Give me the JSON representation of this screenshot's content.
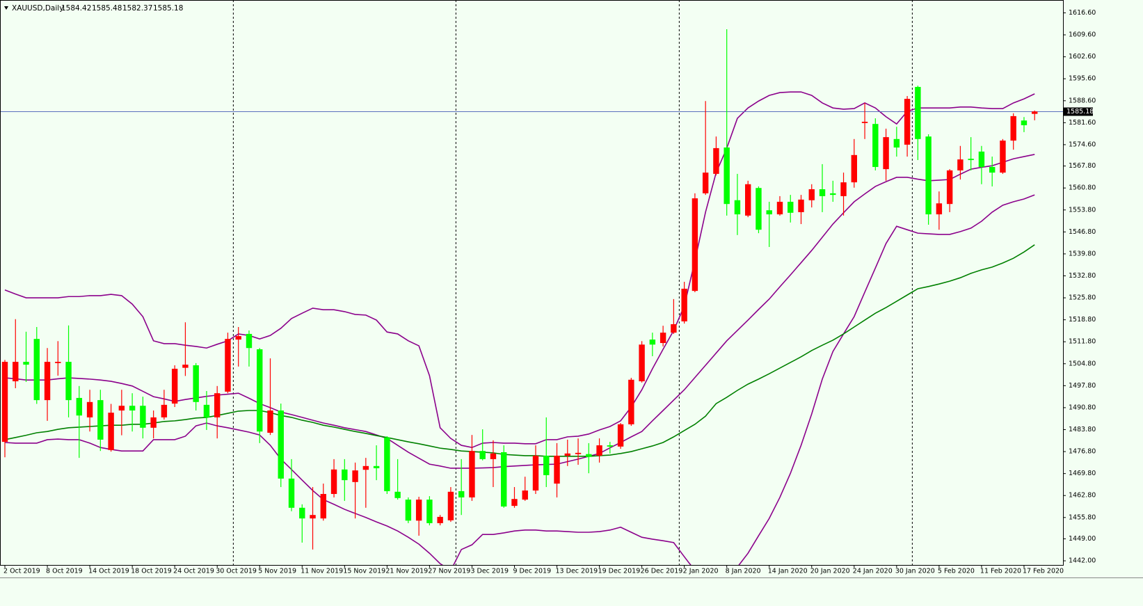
{
  "chart_data": {
    "type": "candlestick",
    "title": "XAUUSD,Daily",
    "categories": [
      "2 Oct 2019",
      null,
      null,
      null,
      "8 Oct 2019",
      null,
      null,
      null,
      "14 Oct 2019",
      null,
      null,
      null,
      "18 Oct 2019",
      null,
      null,
      null,
      "24 Oct 2019",
      null,
      null,
      null,
      "30 Oct 2019",
      null,
      null,
      null,
      "5 Nov 2019",
      null,
      null,
      null,
      "11 Nov 2019",
      null,
      null,
      null,
      "15 Nov 2019",
      null,
      null,
      null,
      "21 Nov 2019",
      null,
      null,
      null,
      "27 Nov 2019",
      null,
      null,
      null,
      "3 Dec 2019",
      null,
      null,
      null,
      "9 Dec 2019",
      null,
      null,
      null,
      "13 Dec 2019",
      null,
      null,
      null,
      "19 Dec 2019",
      null,
      null,
      null,
      "26 Dec 2019",
      null,
      null,
      null,
      "2 Jan 2020",
      null,
      null,
      null,
      "8 Jan 2020",
      null,
      null,
      null,
      "14 Jan 2020",
      null,
      null,
      null,
      "20 Jan 2020",
      null,
      null,
      null,
      "24 Jan 2020",
      null,
      null,
      null,
      "30 Jan 2020",
      null,
      null,
      null,
      "5 Feb 2020",
      null,
      null,
      null,
      "11 Feb 2020",
      null,
      null,
      null,
      "17 Feb 2020",
      null
    ],
    "open": [
      1479.9,
      1499.2,
      1505.4,
      1512.7,
      1493.2,
      1505.0,
      1505.4,
      1493.9,
      1487.7,
      1493.2,
      1477.3,
      1489.9,
      1491.4,
      1491.4,
      1484.4,
      1487.7,
      1492.1,
      1503.5,
      1504.3,
      1491.7,
      1487.7,
      1495.9,
      1512.5,
      1514.3,
      1509.4,
      1482.8,
      1489.9,
      1468.2,
      1458.9,
      1455.5,
      1455.5,
      1463.3,
      1471.1,
      1467.1,
      1471.0,
      1472.2,
      1481.3,
      1464.0,
      1461.5,
      1454.8,
      1461.5,
      1454.0,
      1454.9,
      1464.2,
      1462.2,
      1477.0,
      1474.4,
      1476.6,
      1459.5,
      1461.5,
      1464.4,
      1475.5,
      1466.6,
      1475.5,
      1476.0,
      1476.0,
      1475.5,
      1478.8,
      1478.4,
      1485.5,
      1499.2,
      1512.5,
      1511.4,
      1514.7,
      1518.3,
      1528.0,
      1559.1,
      1565.3,
      1573.7,
      1556.9,
      1552.0,
      1560.8,
      1553.7,
      1552.4,
      1556.4,
      1553.1,
      1556.9,
      1560.4,
      1559.1,
      1558.2,
      1562.6,
      1581.5,
      1581.2,
      1566.8,
      1576.4,
      1574.6,
      1593.0,
      1577.2,
      1552.4,
      1555.7,
      1566.4,
      1570.1,
      1572.4,
      1567.5,
      1565.7,
      1575.9,
      1582.3,
      1584.42
    ],
    "high": [
      1506.0,
      1519.0,
      1515.0,
      1516.5,
      1509.8,
      1512.0,
      1517.0,
      1497.7,
      1496.5,
      1496.5,
      1492.0,
      1496.5,
      1495.4,
      1494.3,
      1489.9,
      1496.5,
      1504.3,
      1518.0,
      1505.0,
      1496.1,
      1497.7,
      1514.7,
      1516.5,
      1515.4,
      1509.8,
      1506.5,
      1492.1,
      1474.4,
      1460.0,
      1465.5,
      1466.6,
      1474.4,
      1474.4,
      1473.3,
      1474.8,
      1478.8,
      1481.7,
      1474.4,
      1462.2,
      1462.4,
      1462.6,
      1456.6,
      1465.5,
      1474.4,
      1482.1,
      1483.9,
      1480.4,
      1478.8,
      1465.5,
      1468.8,
      1478.8,
      1487.7,
      1479.5,
      1480.6,
      1481.0,
      1479.5,
      1481.0,
      1479.9,
      1485.9,
      1500.3,
      1512.0,
      1514.7,
      1516.9,
      1525.4,
      1530.9,
      1559.1,
      1588.5,
      1577.2,
      1611.4,
      1565.3,
      1563.1,
      1561.3,
      1556.4,
      1558.2,
      1558.6,
      1558.6,
      1562.0,
      1568.4,
      1563.1,
      1565.7,
      1576.4,
      1587.9,
      1583.0,
      1579.7,
      1580.3,
      1590.1,
      1593.4,
      1577.9,
      1559.7,
      1566.8,
      1574.2,
      1577.0,
      1574.2,
      1570.8,
      1576.4,
      1584.6,
      1583.4,
      1585.48
    ],
    "low": [
      1475.0,
      1497.0,
      1499.0,
      1492.0,
      1486.6,
      1501.0,
      1487.7,
      1474.8,
      1483.2,
      1477.0,
      1476.8,
      1482.0,
      1483.2,
      1481.0,
      1481.0,
      1487.0,
      1491.0,
      1500.9,
      1489.9,
      1483.7,
      1481.0,
      1495.4,
      1503.9,
      1503.9,
      1479.5,
      1482.1,
      1465.5,
      1457.8,
      1447.8,
      1445.6,
      1454.8,
      1462.2,
      1461.1,
      1455.5,
      1458.9,
      1467.7,
      1463.3,
      1461.5,
      1454.0,
      1450.0,
      1453.3,
      1453.3,
      1454.4,
      1456.6,
      1461.1,
      1474.0,
      1465.5,
      1458.9,
      1458.9,
      1461.1,
      1463.3,
      1465.5,
      1462.2,
      1472.2,
      1472.6,
      1469.9,
      1473.3,
      1476.2,
      1477.7,
      1485.0,
      1498.8,
      1507.2,
      1510.3,
      1514.3,
      1517.6,
      1527.6,
      1558.6,
      1564.8,
      1552.0,
      1545.8,
      1551.5,
      1546.4,
      1542.0,
      1552.0,
      1549.8,
      1549.3,
      1554.6,
      1553.1,
      1556.4,
      1552.0,
      1560.9,
      1576.4,
      1566.4,
      1563.1,
      1570.8,
      1570.8,
      1569.7,
      1549.1,
      1547.5,
      1553.1,
      1563.5,
      1566.4,
      1562.0,
      1561.3,
      1565.3,
      1573.0,
      1578.6,
      1582.37
    ],
    "close": [
      1505.4,
      1505.4,
      1504.5,
      1493.2,
      1505.4,
      1505.4,
      1493.2,
      1488.3,
      1492.6,
      1480.6,
      1489.2,
      1491.4,
      1489.9,
      1484.4,
      1487.7,
      1491.7,
      1503.2,
      1504.5,
      1492.6,
      1487.7,
      1495.4,
      1512.7,
      1513.6,
      1509.8,
      1483.2,
      1489.9,
      1468.2,
      1458.9,
      1455.5,
      1456.6,
      1463.3,
      1471.1,
      1467.7,
      1470.8,
      1472.2,
      1471.5,
      1464.2,
      1462.0,
      1454.8,
      1461.5,
      1454.0,
      1456.0,
      1464.0,
      1462.2,
      1477.0,
      1474.4,
      1476.2,
      1459.3,
      1461.7,
      1464.4,
      1475.5,
      1469.3,
      1475.5,
      1476.2,
      1476.4,
      1475.1,
      1478.8,
      1478.4,
      1485.5,
      1499.7,
      1510.9,
      1510.9,
      1514.7,
      1517.4,
      1528.7,
      1557.5,
      1565.7,
      1573.5,
      1555.7,
      1552.4,
      1562.0,
      1547.5,
      1552.4,
      1556.4,
      1552.9,
      1557.1,
      1560.4,
      1558.2,
      1558.6,
      1562.6,
      1571.3,
      1581.9,
      1567.5,
      1577.0,
      1573.7,
      1589.2,
      1576.4,
      1552.4,
      1555.9,
      1566.4,
      1569.9,
      1569.7,
      1567.5,
      1565.7,
      1575.9,
      1583.7,
      1580.8,
      1585.18
    ],
    "up_color": "#ff0000",
    "down_color": "#00ff00",
    "lines": [
      {
        "color": "#8b008b",
        "values": [
          1528.3,
          1527.0,
          1525.8,
          1525.8,
          1525.8,
          1525.8,
          1526.2,
          1526.2,
          1526.5,
          1526.5,
          1526.9,
          1526.5,
          1523.8,
          1519.8,
          1512.1,
          1511.2,
          1511.2,
          1510.7,
          1510.3,
          1509.8,
          1511.0,
          1512.1,
          1514.3,
          1513.8,
          1512.7,
          1513.8,
          1516.1,
          1519.2,
          1520.9,
          1522.5,
          1522.0,
          1522.0,
          1521.4,
          1520.5,
          1520.3,
          1518.7,
          1514.9,
          1514.3,
          1512.1,
          1510.5,
          1501.0,
          1484.4,
          1481.0,
          1478.8,
          1478.1,
          1479.5,
          1479.7,
          1479.5,
          1479.5,
          1479.3,
          1479.3,
          1480.6,
          1480.6,
          1481.5,
          1481.7,
          1482.4,
          1483.7,
          1484.8,
          1486.6,
          1491.0,
          1496.5,
          1503.2,
          1509.4,
          1515.4,
          1523.2,
          1537.6,
          1553.1,
          1565.7,
          1573.5,
          1583.0,
          1586.3,
          1588.5,
          1590.3,
          1591.2,
          1591.4,
          1591.4,
          1590.3,
          1587.9,
          1586.3,
          1585.9,
          1586.1,
          1587.9,
          1586.3,
          1583.5,
          1581.2,
          1585.2,
          1586.3,
          1586.3,
          1586.3,
          1586.3,
          1586.6,
          1586.6,
          1586.3,
          1586.1,
          1586.1,
          1587.9,
          1589.2,
          1590.8
        ]
      },
      {
        "color": "#8b008b",
        "values": [
          1500.3,
          1500.0,
          1499.6,
          1499.6,
          1499.6,
          1500.0,
          1500.3,
          1500.1,
          1499.9,
          1499.6,
          1499.2,
          1498.5,
          1497.7,
          1496.0,
          1494.3,
          1493.6,
          1492.8,
          1493.4,
          1493.9,
          1494.4,
          1494.8,
          1495.1,
          1495.4,
          1493.8,
          1492.1,
          1490.8,
          1489.4,
          1488.6,
          1487.7,
          1486.8,
          1485.9,
          1485.2,
          1484.4,
          1483.8,
          1483.2,
          1482.1,
          1481.0,
          1478.8,
          1476.6,
          1474.7,
          1472.8,
          1472.2,
          1471.5,
          1471.5,
          1471.5,
          1471.6,
          1471.7,
          1472.0,
          1472.2,
          1472.4,
          1472.6,
          1472.7,
          1472.8,
          1473.6,
          1474.4,
          1475.3,
          1476.2,
          1478.0,
          1479.7,
          1481.5,
          1483.2,
          1486.6,
          1489.9,
          1493.2,
          1496.5,
          1500.4,
          1504.3,
          1508.2,
          1512.1,
          1515.4,
          1518.7,
          1522.1,
          1525.4,
          1529.3,
          1533.1,
          1537.0,
          1540.9,
          1545.1,
          1549.3,
          1552.9,
          1556.4,
          1558.9,
          1561.3,
          1562.8,
          1564.2,
          1564.2,
          1563.6,
          1563.1,
          1563.3,
          1563.5,
          1565.2,
          1566.8,
          1567.4,
          1567.9,
          1569.0,
          1570.1,
          1570.8,
          1571.5
        ]
      },
      {
        "color": "#8b008b",
        "values": [
          1479.7,
          1479.5,
          1479.5,
          1479.5,
          1480.6,
          1480.8,
          1480.6,
          1480.6,
          1479.5,
          1478.1,
          1477.5,
          1477.0,
          1477.0,
          1477.0,
          1480.6,
          1480.6,
          1480.6,
          1481.7,
          1485.0,
          1485.9,
          1485.0,
          1484.4,
          1483.7,
          1483.0,
          1482.1,
          1478.8,
          1474.4,
          1471.1,
          1467.7,
          1464.4,
          1461.5,
          1460.0,
          1458.4,
          1457.1,
          1455.8,
          1454.4,
          1453.1,
          1451.5,
          1449.5,
          1447.3,
          1444.4,
          1441.1,
          1438.9,
          1445.6,
          1447.1,
          1450.4,
          1450.4,
          1450.9,
          1451.5,
          1451.8,
          1451.8,
          1451.5,
          1451.5,
          1451.3,
          1451.1,
          1451.1,
          1451.3,
          1451.8,
          1452.7,
          1451.1,
          1449.5,
          1448.9,
          1448.4,
          1447.8,
          1443.3,
          1438.9,
          1434.5,
          1432.3,
          1434.5,
          1440.0,
          1444.4,
          1450.0,
          1455.5,
          1462.2,
          1469.9,
          1478.8,
          1488.8,
          1499.9,
          1508.7,
          1514.3,
          1519.8,
          1527.6,
          1535.3,
          1543.1,
          1548.6,
          1547.5,
          1546.4,
          1546.2,
          1546.0,
          1546.0,
          1546.9,
          1548.0,
          1550.2,
          1553.1,
          1555.3,
          1556.4,
          1557.3,
          1558.6
        ]
      },
      {
        "color": "#008000",
        "values": [
          1480.6,
          1481.3,
          1482.0,
          1482.8,
          1483.2,
          1483.9,
          1484.4,
          1484.6,
          1484.8,
          1485.0,
          1485.2,
          1485.2,
          1485.5,
          1485.5,
          1485.9,
          1486.4,
          1486.6,
          1487.0,
          1487.5,
          1487.7,
          1488.3,
          1489.0,
          1489.7,
          1489.9,
          1489.9,
          1489.2,
          1488.3,
          1487.7,
          1486.8,
          1486.1,
          1485.2,
          1484.6,
          1483.9,
          1483.2,
          1482.6,
          1481.9,
          1481.3,
          1480.6,
          1479.9,
          1479.3,
          1478.6,
          1477.9,
          1477.5,
          1477.0,
          1476.8,
          1476.6,
          1476.4,
          1475.9,
          1475.7,
          1475.5,
          1475.5,
          1475.3,
          1475.3,
          1475.3,
          1475.3,
          1475.3,
          1475.5,
          1475.7,
          1476.2,
          1476.8,
          1477.7,
          1478.6,
          1479.7,
          1481.5,
          1483.5,
          1485.5,
          1488.1,
          1492.1,
          1494.1,
          1496.3,
          1498.3,
          1499.9,
          1501.6,
          1503.4,
          1505.2,
          1507.0,
          1509.0,
          1510.7,
          1512.3,
          1514.3,
          1516.5,
          1518.7,
          1520.9,
          1522.7,
          1524.7,
          1526.7,
          1528.7,
          1529.4,
          1530.2,
          1531.1,
          1532.2,
          1533.6,
          1534.7,
          1535.6,
          1536.9,
          1538.4,
          1540.4,
          1542.7
        ]
      }
    ],
    "price_line_color": "#5a6ebe",
    "period_separators": [
      22,
      43,
      64,
      86
    ],
    "ylim": [
      1440.68,
      1620.7
    ],
    "yticks": [
      {
        "value": 1616.6,
        "label": "1616.60"
      },
      {
        "value": 1609.6,
        "label": "1609.60"
      },
      {
        "value": 1602.6,
        "label": "1602.60"
      },
      {
        "value": 1595.6,
        "label": "1595.60"
      },
      {
        "value": 1588.6,
        "label": "1588.60"
      },
      {
        "value": 1581.6,
        "label": "1581.60"
      },
      {
        "value": 1574.6,
        "label": "1574.60"
      },
      {
        "value": 1567.8,
        "label": "1567.80"
      },
      {
        "value": 1560.8,
        "label": "1560.80"
      },
      {
        "value": 1553.8,
        "label": "1553.80"
      },
      {
        "value": 1546.8,
        "label": "1546.80"
      },
      {
        "value": 1539.8,
        "label": "1539.80"
      },
      {
        "value": 1532.8,
        "label": "1532.80"
      },
      {
        "value": 1525.8,
        "label": "1525.80"
      },
      {
        "value": 1518.8,
        "label": "1518.80"
      },
      {
        "value": 1511.8,
        "label": "1511.80"
      },
      {
        "value": 1504.8,
        "label": "1504.80"
      },
      {
        "value": 1497.8,
        "label": "1497.80"
      },
      {
        "value": 1490.8,
        "label": "1490.80"
      },
      {
        "value": 1483.8,
        "label": "1483.80"
      },
      {
        "value": 1476.8,
        "label": "1476.80"
      },
      {
        "value": 1469.8,
        "label": "1469.80"
      },
      {
        "value": 1462.8,
        "label": "1462.80"
      },
      {
        "value": 1455.8,
        "label": "1455.80"
      },
      {
        "value": 1449,
        "label": "1449.00"
      },
      {
        "value": 1442,
        "label": "1442.00"
      }
    ]
  }
}
